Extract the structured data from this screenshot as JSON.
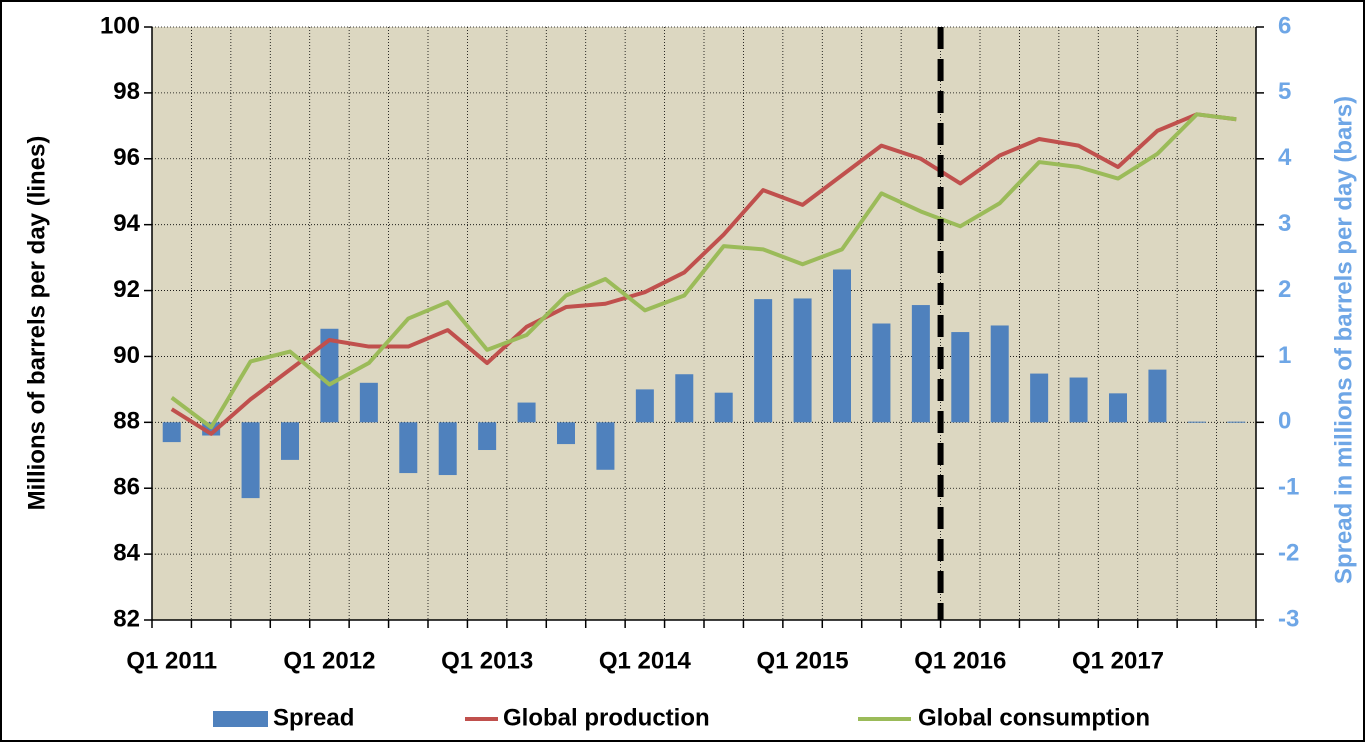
{
  "chart_data": {
    "type": "bar-line",
    "categories": [
      "Q1 2011",
      null,
      null,
      null,
      "Q1 2012",
      null,
      null,
      null,
      "Q1 2013",
      null,
      null,
      null,
      "Q1 2014",
      null,
      null,
      null,
      "Q1 2015",
      null,
      null,
      null,
      "Q1 2016",
      null,
      null,
      null,
      "Q1 2017",
      null,
      null,
      null
    ],
    "ylabel": "Millions of barrels per day (lines)",
    "y2label": "Spread in millions of barrels per day (bars)",
    "ylim": [
      82,
      100
    ],
    "yticks": [
      82,
      84,
      86,
      88,
      90,
      92,
      94,
      96,
      98,
      100
    ],
    "y2lim": [
      -3,
      6
    ],
    "y2ticks": [
      -3,
      -2,
      -1,
      0,
      1,
      2,
      3,
      4,
      5,
      6
    ],
    "grid": true,
    "background": "#dcd7c1",
    "legend": "bottom",
    "divider_before_category": 20,
    "series": [
      {
        "name": "Spread",
        "type": "bar",
        "axis": "y2",
        "color": "#4f81bd",
        "values": [
          -0.3,
          -0.2,
          -1.15,
          -0.57,
          1.42,
          0.6,
          -0.77,
          -0.8,
          -0.42,
          0.3,
          -0.33,
          -0.72,
          0.5,
          0.73,
          0.45,
          1.87,
          1.88,
          2.32,
          1.5,
          1.78,
          1.37,
          1.47,
          0.74,
          0.68,
          0.44,
          0.8,
          0.01,
          0.01
        ]
      },
      {
        "name": "Global production",
        "type": "line",
        "color": "#c0504d",
        "values": [
          88.4,
          87.65,
          88.7,
          89.6,
          90.5,
          90.3,
          90.3,
          90.8,
          89.8,
          90.9,
          91.5,
          91.6,
          91.95,
          92.55,
          93.7,
          95.05,
          94.6,
          95.5,
          96.4,
          96.0,
          95.25,
          96.1,
          96.6,
          96.4,
          95.75,
          96.85,
          97.35,
          97.2
        ]
      },
      {
        "name": "Global consumption",
        "type": "line",
        "color": "#9bbb59",
        "values": [
          88.75,
          87.85,
          89.85,
          90.15,
          89.15,
          89.8,
          91.15,
          91.65,
          90.2,
          90.65,
          91.85,
          92.35,
          91.4,
          91.85,
          93.35,
          93.25,
          92.8,
          93.25,
          94.95,
          94.4,
          93.95,
          94.65,
          95.9,
          95.75,
          95.4,
          96.15,
          97.35,
          97.2
        ]
      }
    ]
  }
}
